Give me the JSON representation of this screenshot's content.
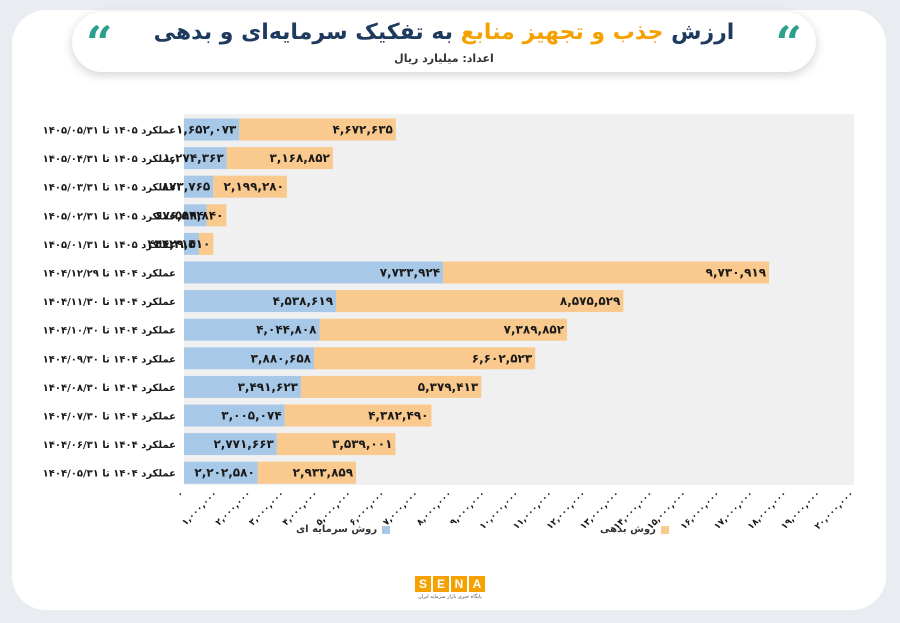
{
  "header": {
    "title_part1": "ارزش",
    "title_part2": "جذب و تجهیز منابع",
    "title_part3": "به تفکیک سرمایه‌ای و بدهی",
    "subtitle": "اعداد: میلیارد ریال",
    "quote_glyph": "“"
  },
  "legend": {
    "debt": "روش بدهی",
    "equity": "روش سرمایه ای"
  },
  "logo": {
    "letters": [
      "S",
      "E",
      "N",
      "A"
    ],
    "tagline": "پایگاه خبری بازار سرمایه ایران"
  },
  "colors": {
    "equity": "#a8c8e8",
    "debt": "#f9c98d",
    "title": "#1f3a5f",
    "accent": "#f5a200",
    "quote": "#2aa18c",
    "plot_bg": "#f0f0f0"
  },
  "chart_data": {
    "type": "bar",
    "orientation": "horizontal",
    "stacked": true,
    "categories": [
      "عملکرد ۱۴۰۵ تا ۱۴۰۵/۰۵/۳۱",
      "عملکرد ۱۴۰۵ تا ۱۴۰۵/۰۴/۳۱",
      "عملکرد ۱۴۰۵ تا ۱۴۰۵/۰۳/۳۱",
      "عملکرد ۱۴۰۵ تا ۱۴۰۵/۰۲/۳۱",
      "عملکرد ۱۴۰۵ تا ۱۴۰۵/۰۱/۳۱",
      "عملکرد ۱۴۰۴ تا ۱۴۰۴/۱۲/۲۹",
      "عملکرد ۱۴۰۴ تا ۱۴۰۴/۱۱/۳۰",
      "عملکرد ۱۴۰۴ تا ۱۴۰۴/۱۰/۳۰",
      "عملکرد ۱۴۰۴ تا ۱۴۰۴/۰۹/۳۰",
      "عملکرد ۱۴۰۴ تا ۱۴۰۴/۰۸/۳۰",
      "عملکرد ۱۴۰۴ تا ۱۴۰۴/۰۷/۳۰",
      "عملکرد ۱۴۰۴ تا ۱۴۰۴/۰۶/۳۱",
      "عملکرد ۱۴۰۴ تا ۱۴۰۴/۰۵/۳۱"
    ],
    "series": [
      {
        "name": "روش سرمایه ای",
        "values": [
          1652073,
          1274363,
          873765,
          676544,
          446314,
          7733924,
          4538619,
          4044808,
          3880658,
          3491623,
          3005074,
          2771663,
          2202580
        ],
        "labels": [
          "۱,۶۵۲,۰۷۳",
          "۱,۲۷۴,۳۶۳",
          "۸۷۳,۷۶۵",
          "۶۷۶,۵۴۴",
          "۴۴۶,۳۱۴",
          "۷,۷۳۳,۹۲۴",
          "۴,۵۳۸,۶۱۹",
          "۴,۰۴۴,۸۰۸",
          "۳,۸۸۰,۶۵۸",
          "۳,۴۹۱,۶۲۳",
          "۳,۰۰۵,۰۷۴",
          "۲,۷۷۱,۶۶۳",
          "۲,۲۰۲,۵۸۰"
        ]
      },
      {
        "name": "روش بدهی",
        "values": [
          4672635,
          3168852,
          2199280,
          589840,
          429510,
          9730919,
          8575529,
          7389852,
          6602523,
          5379413,
          4382490,
          3539001,
          2933859
        ],
        "labels": [
          "۴,۶۷۲,۶۳۵",
          "۳,۱۶۸,۸۵۲",
          "۲,۱۹۹,۲۸۰",
          "۵۸۹,۸۴۰",
          "۴۲۹,۵۱۰",
          "۹,۷۳۰,۹۱۹",
          "۸,۵۷۵,۵۲۹",
          "۷,۳۸۹,۸۵۲",
          "۶,۶۰۲,۵۲۳",
          "۵,۳۷۹,۴۱۳",
          "۴,۳۸۲,۴۹۰",
          "۳,۵۳۹,۰۰۱",
          "۲,۹۳۳,۸۵۹"
        ]
      }
    ],
    "xlim": [
      0,
      20000000
    ],
    "xticks": [
      0,
      1000000,
      2000000,
      3000000,
      4000000,
      5000000,
      6000000,
      7000000,
      8000000,
      9000000,
      10000000,
      11000000,
      12000000,
      13000000,
      14000000,
      15000000,
      16000000,
      17000000,
      18000000,
      19000000,
      20000000
    ],
    "xtick_labels": [
      "۰",
      "۱,۰۰۰,۰۰۰",
      "۲,۰۰۰,۰۰۰",
      "۳,۰۰۰,۰۰۰",
      "۴,۰۰۰,۰۰۰",
      "۵,۰۰۰,۰۰۰",
      "۶,۰۰۰,۰۰۰",
      "۷,۰۰۰,۰۰۰",
      "۸,۰۰۰,۰۰۰",
      "۹,۰۰۰,۰۰۰",
      "۱۰,۰۰۰,۰۰۰",
      "۱۱,۰۰۰,۰۰۰",
      "۱۲,۰۰۰,۰۰۰",
      "۱۳,۰۰۰,۰۰۰",
      "۱۴,۰۰۰,۰۰۰",
      "۱۵,۰۰۰,۰۰۰",
      "۱۶,۰۰۰,۰۰۰",
      "۱۷,۰۰۰,۰۰۰",
      "۱۸,۰۰۰,۰۰۰",
      "۱۹,۰۰۰,۰۰۰",
      "۲۰,۰۰۰,۰۰۰"
    ],
    "grid": false,
    "legend_position": "bottom"
  }
}
